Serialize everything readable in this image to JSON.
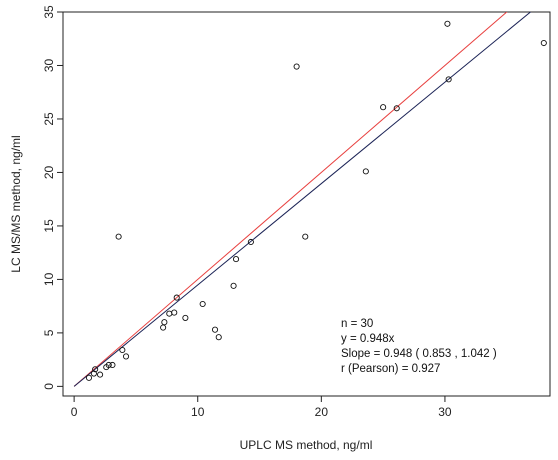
{
  "chart_data": {
    "type": "scatter",
    "title": "",
    "xlabel": "UPLC MS method, ng/ml",
    "ylabel": "LC MS/MS method, ng/ml",
    "xlim": [
      -0.9,
      38.5
    ],
    "ylim": [
      -0.9,
      35
    ],
    "x_ticks": [
      0,
      10,
      20,
      30
    ],
    "y_ticks": [
      0,
      5,
      10,
      15,
      20,
      25,
      30,
      35
    ],
    "grid": false,
    "points": [
      {
        "x": 1.2,
        "y": 0.8
      },
      {
        "x": 1.6,
        "y": 1.2
      },
      {
        "x": 1.7,
        "y": 1.6
      },
      {
        "x": 2.1,
        "y": 1.1
      },
      {
        "x": 2.6,
        "y": 1.8
      },
      {
        "x": 2.8,
        "y": 2.0
      },
      {
        "x": 3.1,
        "y": 2.0
      },
      {
        "x": 3.6,
        "y": 14.0
      },
      {
        "x": 3.9,
        "y": 3.4
      },
      {
        "x": 4.2,
        "y": 2.8
      },
      {
        "x": 7.2,
        "y": 5.5
      },
      {
        "x": 7.3,
        "y": 6.0
      },
      {
        "x": 7.7,
        "y": 6.8
      },
      {
        "x": 8.1,
        "y": 6.9
      },
      {
        "x": 8.3,
        "y": 8.3
      },
      {
        "x": 9.0,
        "y": 6.4
      },
      {
        "x": 10.4,
        "y": 7.7
      },
      {
        "x": 11.4,
        "y": 5.3
      },
      {
        "x": 11.7,
        "y": 4.6
      },
      {
        "x": 12.9,
        "y": 9.4
      },
      {
        "x": 13.1,
        "y": 11.9
      },
      {
        "x": 14.3,
        "y": 13.5
      },
      {
        "x": 18.0,
        "y": 29.9
      },
      {
        "x": 18.7,
        "y": 14.0
      },
      {
        "x": 23.6,
        "y": 20.1
      },
      {
        "x": 25.0,
        "y": 26.1
      },
      {
        "x": 26.1,
        "y": 26.0
      },
      {
        "x": 30.2,
        "y": 33.9
      },
      {
        "x": 30.3,
        "y": 28.7
      },
      {
        "x": 38.0,
        "y": 32.1
      }
    ],
    "lines": [
      {
        "label": "identity",
        "slope": 1.0,
        "color": "#e8403f"
      },
      {
        "label": "fit",
        "slope": 0.948,
        "color": "#1b2356"
      }
    ],
    "annotation": [
      "n = 30",
      "y = 0.948x",
      "Slope =  0.948  ( 0.853  ,  1.042 )",
      "r (Pearson) =  0.927"
    ]
  }
}
